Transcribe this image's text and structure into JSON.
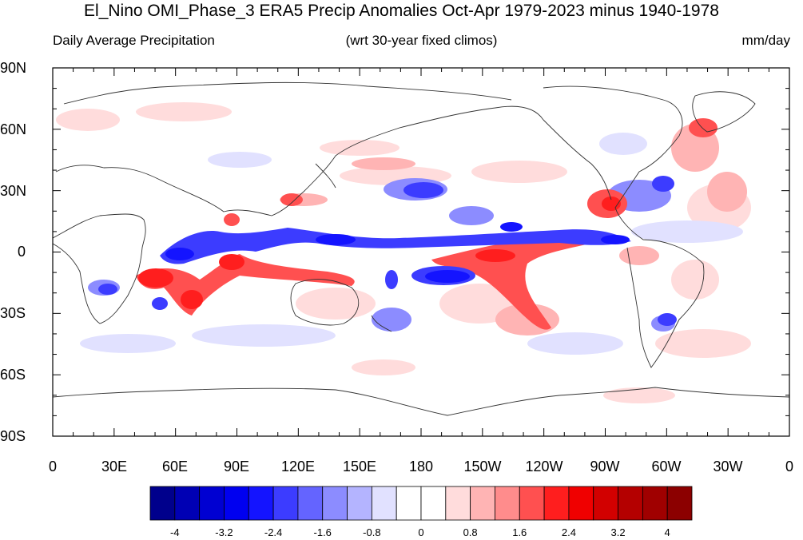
{
  "title": "El_Nino OMI_Phase_3 ERA5 Precip Anomalies Oct-Apr 1979-2023 minus 1940-1978",
  "subtitle_left": "Daily Average Precipitation",
  "subtitle_center": "(wrt 30-year fixed climos)",
  "subtitle_right": "mm/day",
  "lat_labels": [
    "90N",
    "60N",
    "30N",
    "0",
    "30S",
    "60S",
    "90S"
  ],
  "lon_labels": [
    "0",
    "30E",
    "60E",
    "90E",
    "120E",
    "150E",
    "180",
    "150W",
    "120W",
    "90W",
    "60W",
    "30W",
    "0"
  ],
  "colorbar": {
    "colors": [
      "#00008c",
      "#0000b4",
      "#0000d2",
      "#0000f0",
      "#1414ff",
      "#3c3cff",
      "#6464ff",
      "#8c8cff",
      "#b4b4ff",
      "#e1e1ff",
      "#ffffff",
      "#ffffff",
      "#ffdcdc",
      "#ffb4b4",
      "#ff8c8c",
      "#ff5050",
      "#ff1e1e",
      "#f00000",
      "#d20000",
      "#b40000",
      "#a00000",
      "#8c0000"
    ],
    "labels": [
      "-4",
      "-3.2",
      "-2.4",
      "-1.6",
      "-0.8",
      "0",
      "0.8",
      "1.6",
      "2.4",
      "3.2",
      "4"
    ]
  },
  "map_colors": {
    "strong_red": "#ff1e1e",
    "red": "#ff5050",
    "light_red": "#ffb4b4",
    "pale_red": "#ffdcdc",
    "strong_blue": "#1414ff",
    "blue": "#3c3cff",
    "light_blue": "#8c8cff",
    "pale_blue": "#e1e1ff",
    "coastline": "#333333"
  }
}
